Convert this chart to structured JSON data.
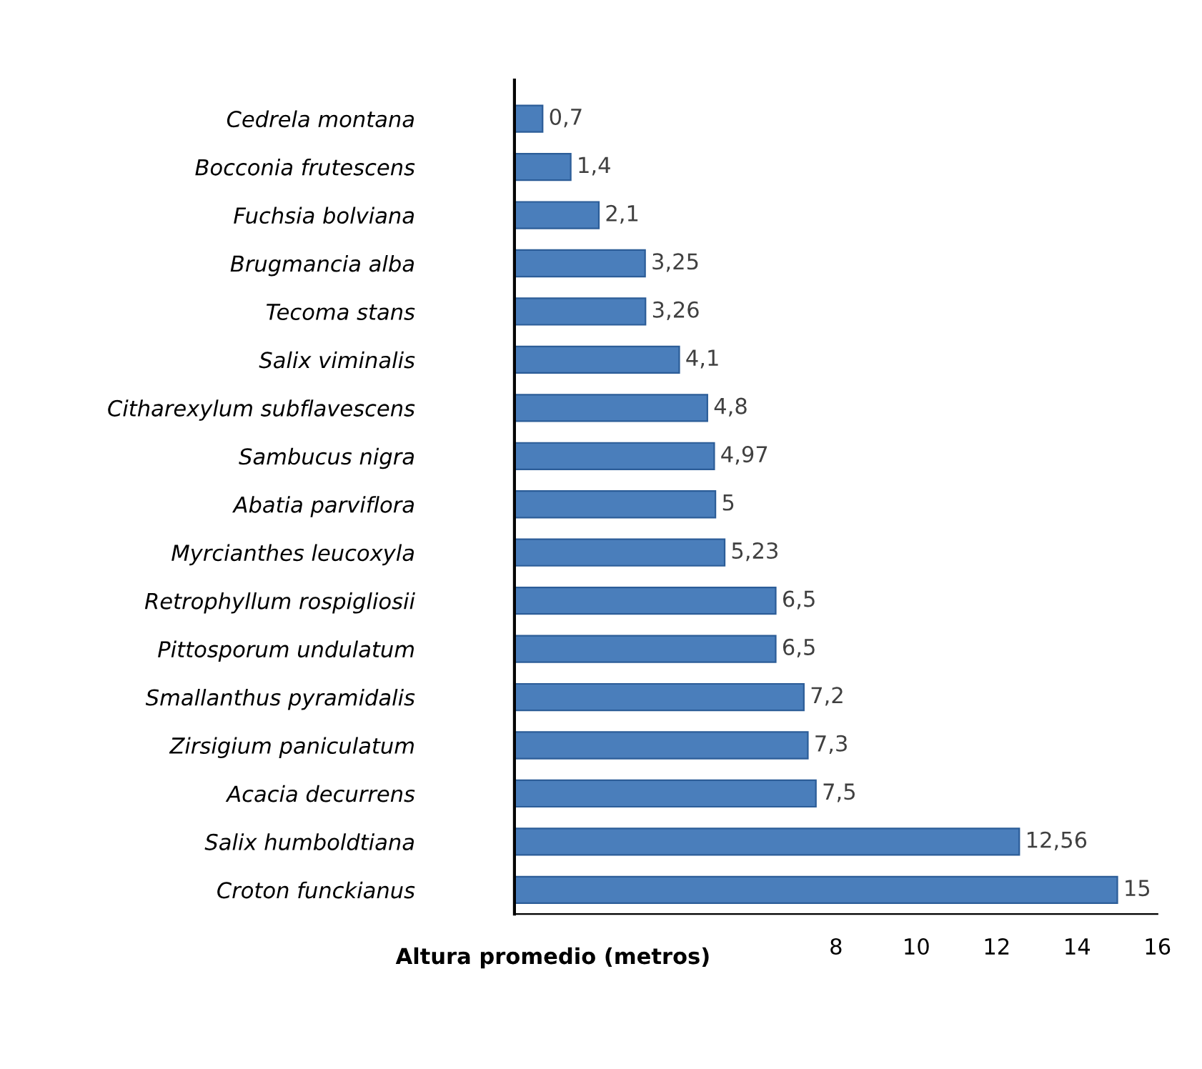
{
  "chart_data": {
    "type": "bar",
    "orientation": "horizontal",
    "xlabel": "Altura promedio (metros)",
    "categories": [
      "Cedrela montana",
      "Bocconia frutescens",
      "Fuchsia bolviana",
      "Brugmancia alba",
      "Tecoma stans",
      "Salix viminalis",
      "Citharexylum subflavescens",
      "Sambucus nigra",
      "Abatia parviflora",
      "Myrcianthes leucoxyla",
      "Retrophyllum rospigliosii",
      "Pittosporum undulatum",
      "Smallanthus pyramidalis",
      "Zirsigium paniculatum",
      "Acacia decurrens",
      "Salix humboldtiana",
      "Croton funckianus"
    ],
    "values": [
      0.7,
      1.4,
      2.1,
      3.25,
      3.26,
      4.1,
      4.8,
      4.97,
      5,
      5.23,
      6.5,
      6.5,
      7.2,
      7.3,
      7.5,
      12.56,
      15
    ],
    "value_labels": [
      "0,7",
      "1,4",
      "2,1",
      "3,25",
      "3,26",
      "4,1",
      "4,8",
      "4,97",
      "5",
      "5,23",
      "6,5",
      "6,5",
      "7,2",
      "7,3",
      "7,5",
      "12,56",
      "15"
    ],
    "color": "#4a7ebb",
    "xlim": [
      0,
      16
    ],
    "xticks": [
      8,
      10,
      12,
      14,
      16
    ],
    "grid": false,
    "legend": false
  }
}
